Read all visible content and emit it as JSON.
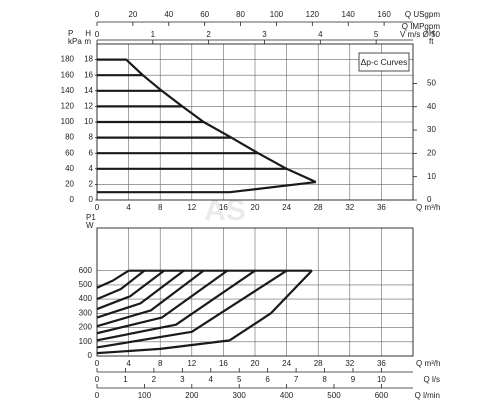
{
  "chart_data": [
    {
      "type": "line",
      "x_label": "Q m³/h",
      "y_label": "P",
      "y_unit": "kPa",
      "xlim": [
        0,
        40
      ],
      "xticks": [
        0,
        4,
        8,
        12,
        16,
        20,
        24,
        28,
        32,
        36
      ],
      "ylim": [
        0,
        200
      ],
      "yticks": [
        0,
        20,
        40,
        60,
        80,
        100,
        120,
        140,
        160,
        180
      ],
      "grid": true,
      "legend_box": "Δp-c Curves",
      "annotations": [
        "Q IMPgpm"
      ],
      "watermark": "AS",
      "axes": [
        {
          "position": "left",
          "label": "H",
          "unit": "m",
          "lim": [
            0,
            20
          ],
          "ticks": [
            0,
            2,
            4,
            6,
            8,
            10,
            12,
            14,
            16,
            18
          ]
        },
        {
          "position": "right",
          "label": "H",
          "unit": "ft",
          "lim": [
            0,
            66.9
          ],
          "ticks": [
            0,
            10,
            20,
            30,
            40,
            50
          ]
        },
        {
          "position": "top",
          "label": "Q USgpm",
          "lim": [
            0,
            176.1
          ],
          "ticks": [
            0,
            20,
            40,
            60,
            80,
            100,
            120,
            140,
            160
          ]
        },
        {
          "position": "top",
          "label": "V m/s Ø 50",
          "lim": [
            0,
            5.66
          ],
          "ticks": [
            0,
            1,
            2,
            3,
            4,
            5
          ]
        }
      ],
      "series": [
        {
          "color": "#1a1a1a",
          "x": [
            0,
            3.7,
            5.8,
            8.2,
            10.8,
            13.5,
            17,
            20.4,
            24,
            27.7
          ],
          "values": [
            180,
            180,
            160,
            140,
            120,
            100,
            80,
            60,
            40,
            23
          ]
        },
        {
          "color": "#1a1a1a",
          "x": [
            0,
            16.8,
            27.7
          ],
          "values": [
            10,
            10,
            23
          ]
        },
        {
          "color": "#1a1a1a",
          "x": [
            0,
            5.8
          ],
          "values": [
            160,
            160
          ]
        },
        {
          "color": "#1a1a1a",
          "x": [
            0,
            8.2
          ],
          "values": [
            140,
            140
          ]
        },
        {
          "color": "#1a1a1a",
          "x": [
            0,
            10.8
          ],
          "values": [
            120,
            120
          ]
        },
        {
          "color": "#1a1a1a",
          "x": [
            0,
            13.5
          ],
          "values": [
            100,
            100
          ]
        },
        {
          "color": "#1a1a1a",
          "x": [
            0,
            17
          ],
          "values": [
            80,
            80
          ]
        },
        {
          "color": "#1a1a1a",
          "x": [
            0,
            20.4
          ],
          "values": [
            60,
            60
          ]
        },
        {
          "color": "#1a1a1a",
          "x": [
            0,
            24
          ],
          "values": [
            40,
            40
          ]
        }
      ]
    },
    {
      "type": "line",
      "x_label": "Q m³/h",
      "y_label": "P1",
      "y_unit": "W",
      "xlim": [
        0,
        40
      ],
      "xticks": [
        0,
        4,
        8,
        12,
        16,
        20,
        24,
        28,
        32,
        36
      ],
      "ylim": [
        0,
        900
      ],
      "yticks": [
        0,
        100,
        200,
        300,
        400,
        500,
        600
      ],
      "grid": true,
      "axes": [
        {
          "position": "bottom",
          "label": "Q l/s",
          "lim": [
            0,
            11.11
          ],
          "ticks": [
            0,
            1,
            2,
            3,
            4,
            5,
            6,
            7,
            8,
            9,
            10
          ]
        },
        {
          "position": "bottom",
          "label": "Q l/min",
          "lim": [
            0,
            666.7
          ],
          "ticks": [
            0,
            100,
            200,
            300,
            400,
            500,
            600
          ]
        }
      ],
      "series": [
        {
          "color": "#1a1a1a",
          "x": [
            4,
            27.2
          ],
          "values": [
            600,
            600
          ]
        },
        {
          "color": "#1a1a1a",
          "x": [
            0,
            8,
            16.8
          ],
          "values": [
            20,
            50,
            110
          ]
        },
        {
          "color": "#1a1a1a",
          "x": [
            16.8,
            22,
            27.2
          ],
          "values": [
            110,
            300,
            600
          ]
        },
        {
          "color": "#1a1a1a",
          "x": [
            0,
            2,
            4
          ],
          "values": [
            480,
            530,
            600
          ]
        },
        {
          "color": "#1a1a1a",
          "x": [
            0,
            3,
            6
          ],
          "values": [
            400,
            470,
            600
          ]
        },
        {
          "color": "#1a1a1a",
          "x": [
            0,
            4.2,
            8.5
          ],
          "values": [
            330,
            420,
            600
          ]
        },
        {
          "color": "#1a1a1a",
          "x": [
            0,
            5.5,
            11
          ],
          "values": [
            270,
            370,
            600
          ]
        },
        {
          "color": "#1a1a1a",
          "x": [
            0,
            6.8,
            13.5
          ],
          "values": [
            210,
            320,
            600
          ]
        },
        {
          "color": "#1a1a1a",
          "x": [
            0,
            8.2,
            16.5
          ],
          "values": [
            160,
            270,
            600
          ]
        },
        {
          "color": "#1a1a1a",
          "x": [
            0,
            10,
            20
          ],
          "values": [
            110,
            220,
            600
          ]
        },
        {
          "color": "#1a1a1a",
          "x": [
            0,
            12,
            24
          ],
          "values": [
            60,
            170,
            600
          ]
        }
      ]
    }
  ]
}
